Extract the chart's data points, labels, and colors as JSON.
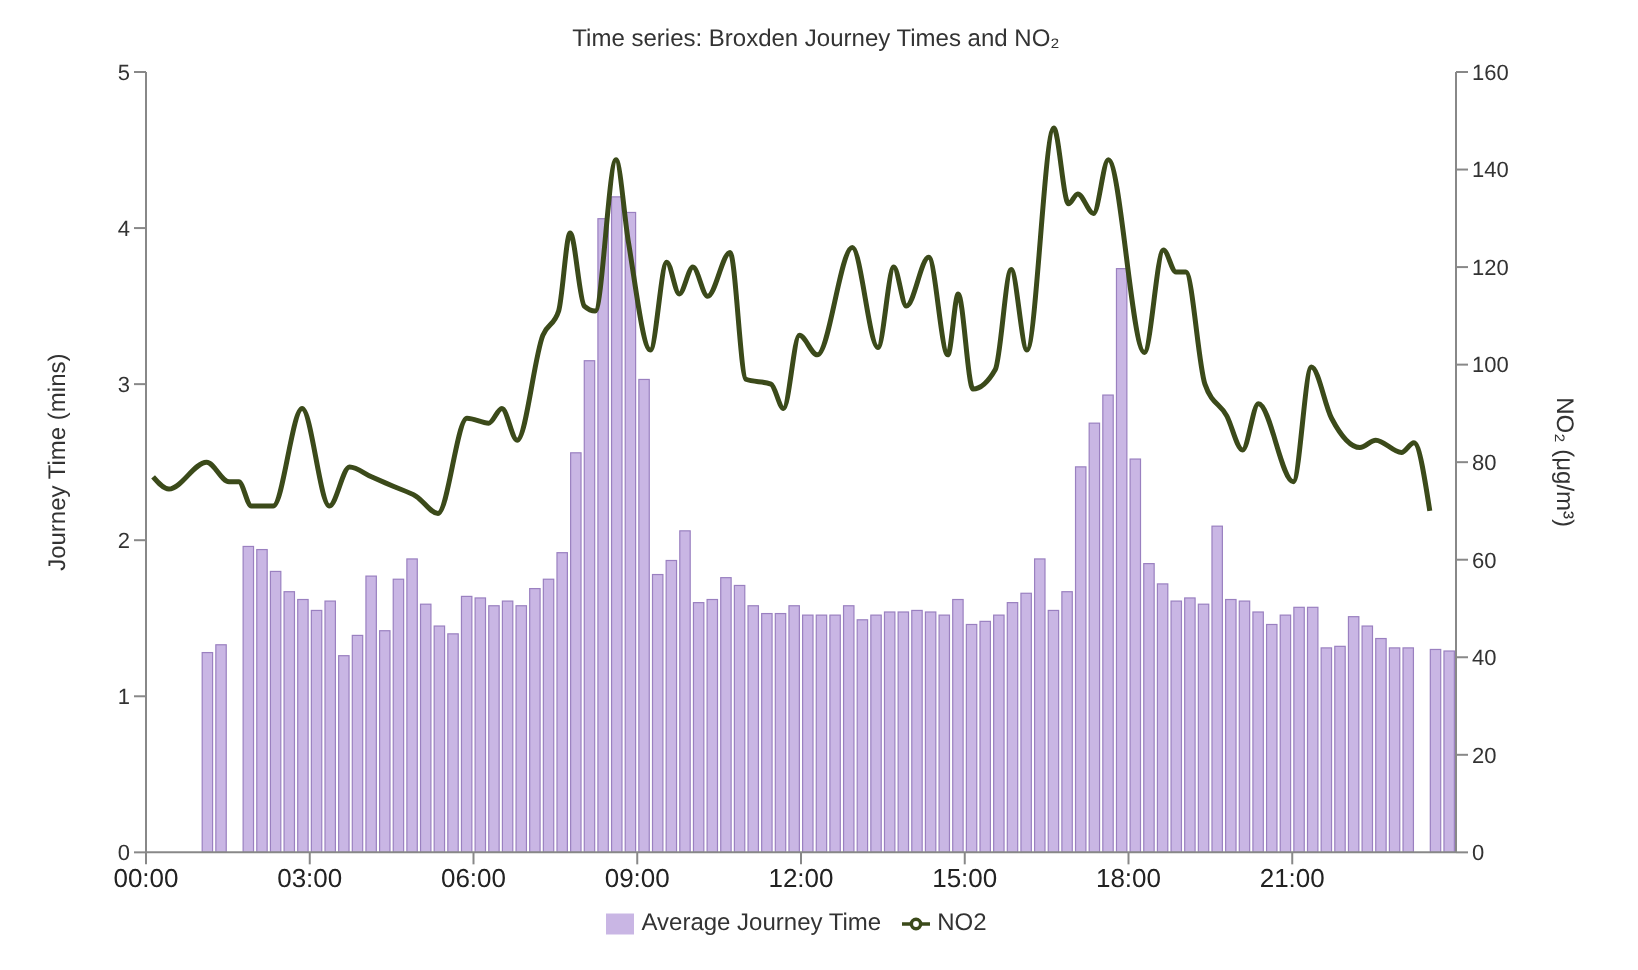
{
  "chart_data": {
    "type": "bar",
    "title": "Time series: Broxden Journey Times and NO₂",
    "ylabel": "Journey Time (mins)",
    "y2label": "NO₂ (μg/m³)",
    "x": [
      1.125,
      1.375,
      1.875,
      2.125,
      2.375,
      2.625,
      2.875,
      3.125,
      3.375,
      3.625,
      3.875,
      4.125,
      4.375,
      4.625,
      4.875,
      5.125,
      5.375,
      5.625,
      5.875,
      6.125,
      6.375,
      6.625,
      6.875,
      7.125,
      7.375,
      7.625,
      7.875,
      8.125,
      8.375,
      8.625,
      8.875,
      9.125,
      9.375,
      9.625,
      9.875,
      10.125,
      10.375,
      10.625,
      10.875,
      11.125,
      11.375,
      11.625,
      11.875,
      12.125,
      12.375,
      12.625,
      12.875,
      13.125,
      13.375,
      13.625,
      13.875,
      14.125,
      14.375,
      14.625,
      14.875,
      15.125,
      15.375,
      15.625,
      15.875,
      16.125,
      16.375,
      16.625,
      16.875,
      17.125,
      17.375,
      17.625,
      17.875,
      18.125,
      18.375,
      18.625,
      18.875,
      19.125,
      19.375,
      19.625,
      19.875,
      20.125,
      20.375,
      20.625,
      20.875,
      21.125,
      21.375,
      21.625,
      21.875,
      22.125,
      22.375,
      22.625,
      22.875,
      23.125,
      23.625,
      23.875
    ],
    "series": [
      {
        "name": "Average Journey Time",
        "color": "#c9b6e4",
        "values": [
          1.28,
          1.33,
          1.96,
          1.94,
          1.8,
          1.67,
          1.62,
          1.55,
          1.61,
          1.26,
          1.39,
          1.77,
          1.42,
          1.75,
          1.88,
          1.59,
          1.45,
          1.4,
          1.64,
          1.63,
          1.58,
          1.61,
          1.58,
          1.69,
          1.75,
          1.92,
          2.56,
          3.15,
          4.06,
          4.2,
          4.1,
          3.03,
          1.78,
          1.87,
          2.06,
          1.6,
          1.62,
          1.76,
          1.71,
          1.58,
          1.53,
          1.53,
          1.58,
          1.52,
          1.52,
          1.52,
          1.58,
          1.49,
          1.52,
          1.54,
          1.54,
          1.55,
          1.54,
          1.52,
          1.62,
          1.46,
          1.48,
          1.52,
          1.6,
          1.66,
          1.88,
          1.55,
          1.67,
          2.47,
          2.75,
          2.93,
          3.74,
          2.52,
          1.85,
          1.72,
          1.61,
          1.63,
          1.59,
          2.09,
          1.62,
          1.61,
          1.54,
          1.46,
          1.52,
          1.57,
          1.57,
          1.31,
          1.32,
          1.51,
          1.45,
          1.37,
          1.31,
          1.31,
          1.3,
          1.29
        ]
      },
      {
        "name": "NO2",
        "type": "line",
        "axis": "y2",
        "color": "#3b4a1a",
        "x": [
          0.13,
          0.42,
          1.11,
          1.52,
          1.7,
          1.93,
          2.33,
          2.86,
          3.36,
          3.73,
          4.13,
          4.54,
          4.95,
          5.35,
          5.88,
          6.28,
          6.52,
          6.8,
          7.27,
          7.56,
          7.77,
          8.03,
          8.23,
          8.61,
          8.84,
          9.24,
          9.54,
          9.77,
          10.02,
          10.29,
          10.7,
          10.99,
          11.45,
          11.68,
          11.97,
          12.3,
          12.94,
          13.41,
          13.7,
          13.93,
          14.34,
          14.69,
          14.88,
          15.15,
          15.56,
          15.85,
          16.14,
          16.63,
          16.9,
          17.07,
          17.36,
          17.63,
          18.29,
          18.64,
          18.87,
          19.05,
          19.4,
          19.8,
          20.09,
          20.38,
          21.02,
          21.35,
          21.72,
          22.24,
          22.53,
          23.0,
          23.23,
          23.52
        ],
        "values": [
          77,
          74.5,
          80,
          76,
          76,
          71,
          71,
          91,
          71,
          79,
          77,
          75,
          73,
          69.5,
          89,
          88,
          91,
          84.5,
          106,
          111,
          127,
          112,
          111,
          142,
          125,
          103,
          121,
          114.5,
          120,
          114,
          123,
          97,
          96,
          91,
          106,
          102,
          124,
          103.5,
          120,
          112,
          122,
          102,
          114.5,
          95,
          99,
          119.5,
          103,
          148.5,
          133,
          135,
          131,
          142,
          102.5,
          123.5,
          119,
          119,
          96,
          89.5,
          82.5,
          92,
          76,
          99.5,
          89,
          83,
          84.5,
          82,
          84,
          70
        ]
      }
    ],
    "xlim": [
      0,
      24
    ],
    "xticks": [
      {
        "value": 0,
        "label": "00:00"
      },
      {
        "value": 3,
        "label": "03:00"
      },
      {
        "value": 6,
        "label": "06:00"
      },
      {
        "value": 9,
        "label": "09:00"
      },
      {
        "value": 12,
        "label": "12:00"
      },
      {
        "value": 15,
        "label": "15:00"
      },
      {
        "value": 18,
        "label": "18:00"
      },
      {
        "value": 21,
        "label": "21:00"
      }
    ],
    "ylim": [
      0,
      5
    ],
    "yticks": [
      0,
      1,
      2,
      3,
      4,
      5
    ],
    "y2lim": [
      0,
      160
    ],
    "y2ticks": [
      0,
      20,
      40,
      60,
      80,
      100,
      120,
      140,
      160
    ],
    "grid": false,
    "legend": "bottom"
  }
}
